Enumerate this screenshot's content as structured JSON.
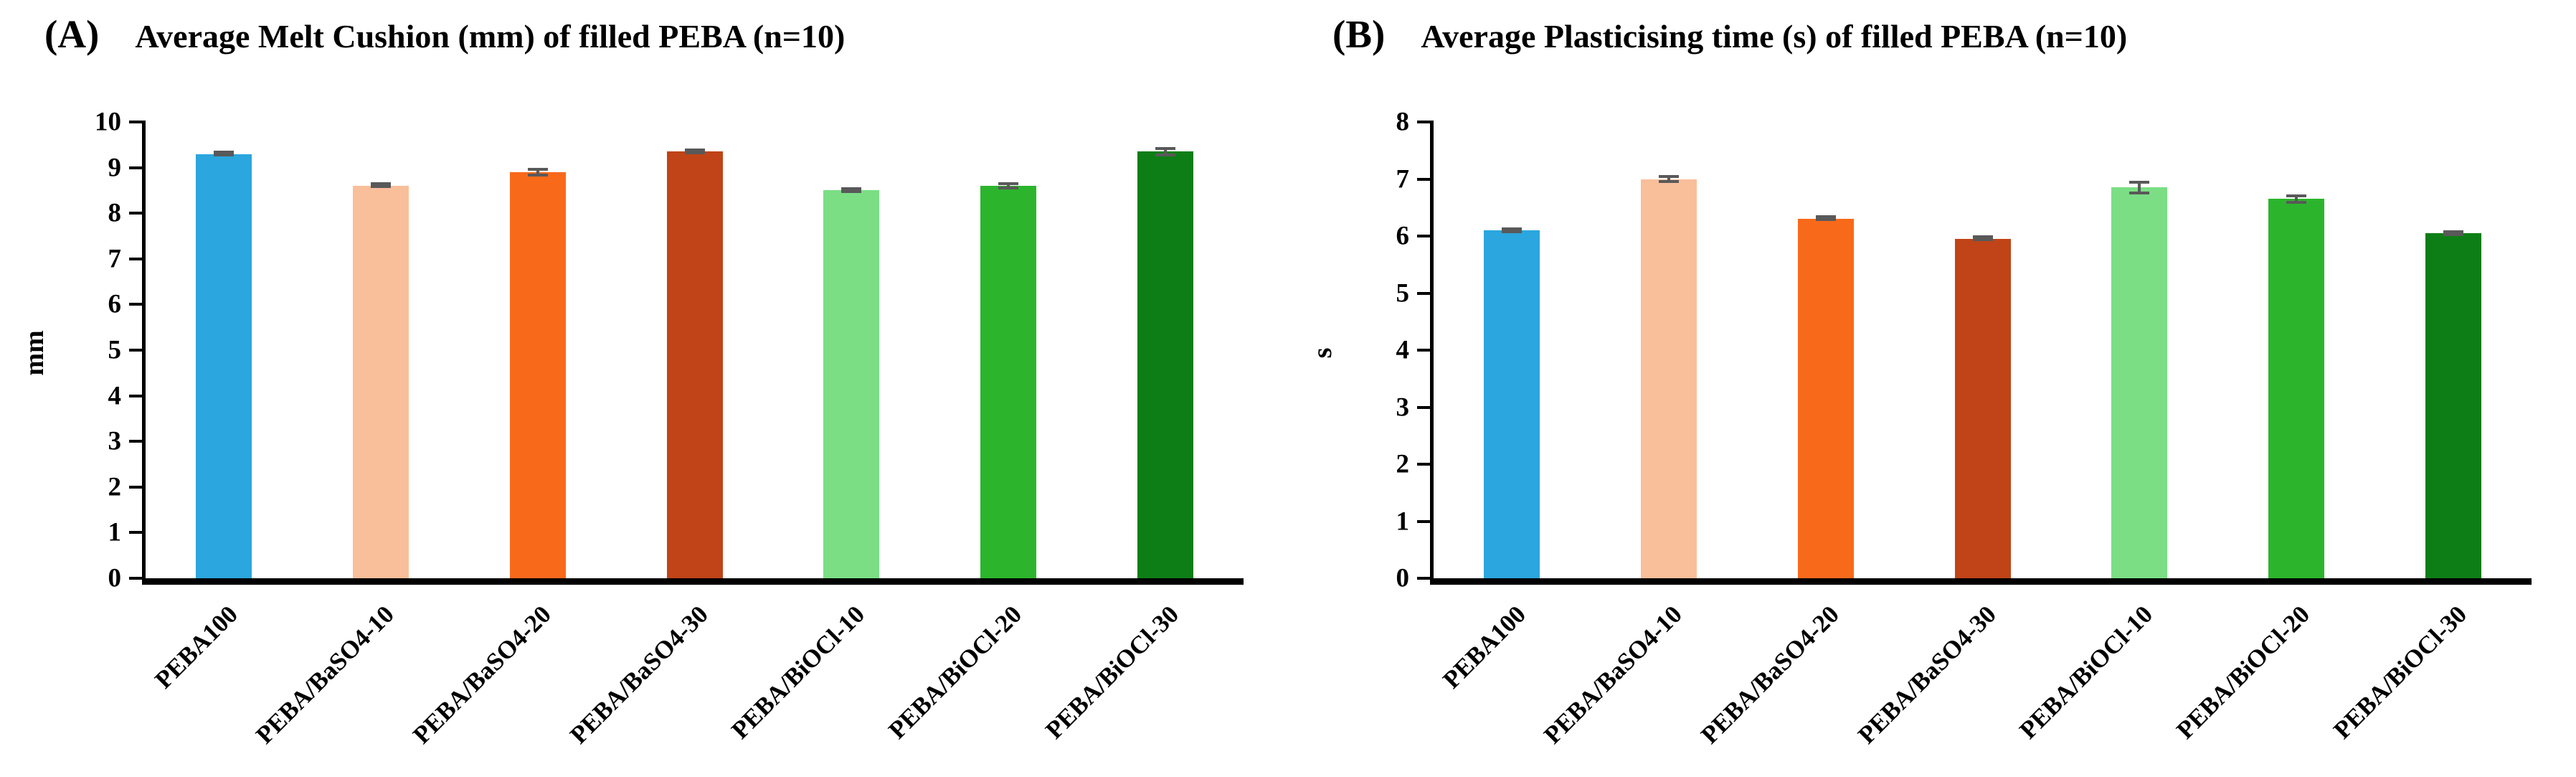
{
  "figure": {
    "background": "#FFFFFF",
    "axis_color": "#000000",
    "error_bar_color": "#595959"
  },
  "chart_data": [
    {
      "type": "bar",
      "panel_label": "(A)",
      "title": "Average Melt Cushion (mm) of filled PEBA (n=10)",
      "xlabel": "",
      "ylabel": "mm",
      "ylim": [
        0,
        10
      ],
      "ytick_step": 1,
      "grid": false,
      "legend": "none",
      "categories": [
        "PEBA100",
        "PEBA/BaSO4-10",
        "PEBA/BaSO4-20",
        "PEBA/BaSO4-30",
        "PEBA/BiOCl-10",
        "PEBA/BiOCl-20",
        "PEBA/BiOCl-30"
      ],
      "values": [
        9.3,
        8.6,
        8.9,
        9.35,
        8.5,
        8.6,
        9.35
      ],
      "errors": [
        0.06,
        0.05,
        0.1,
        0.05,
        0.05,
        0.08,
        0.1
      ],
      "bar_colors": [
        "#2BA6DE",
        "#F9BE9A",
        "#F9691A",
        "#C04417",
        "#7BDE85",
        "#2CB52C",
        "#0D7E16"
      ]
    },
    {
      "type": "bar",
      "panel_label": "(B)",
      "title": "Average Plasticising time (s) of filled PEBA (n=10)",
      "xlabel": "",
      "ylabel": "s",
      "ylim": [
        0,
        8
      ],
      "ytick_step": 1,
      "grid": false,
      "legend": "none",
      "categories": [
        "PEBA100",
        "PEBA/BaSO4-10",
        "PEBA/BaSO4-20",
        "PEBA/BaSO4-30",
        "PEBA/BiOCl-10",
        "PEBA/BiOCl-20",
        "PEBA/BiOCl-30"
      ],
      "values": [
        6.1,
        7.0,
        6.3,
        5.95,
        6.85,
        6.65,
        6.05
      ],
      "errors": [
        0.05,
        0.07,
        0.04,
        0.04,
        0.12,
        0.08,
        0.05
      ],
      "bar_colors": [
        "#2BA6DE",
        "#F9BE9A",
        "#F9691A",
        "#C04417",
        "#7BDE85",
        "#2CB52C",
        "#0D7E16"
      ]
    }
  ]
}
